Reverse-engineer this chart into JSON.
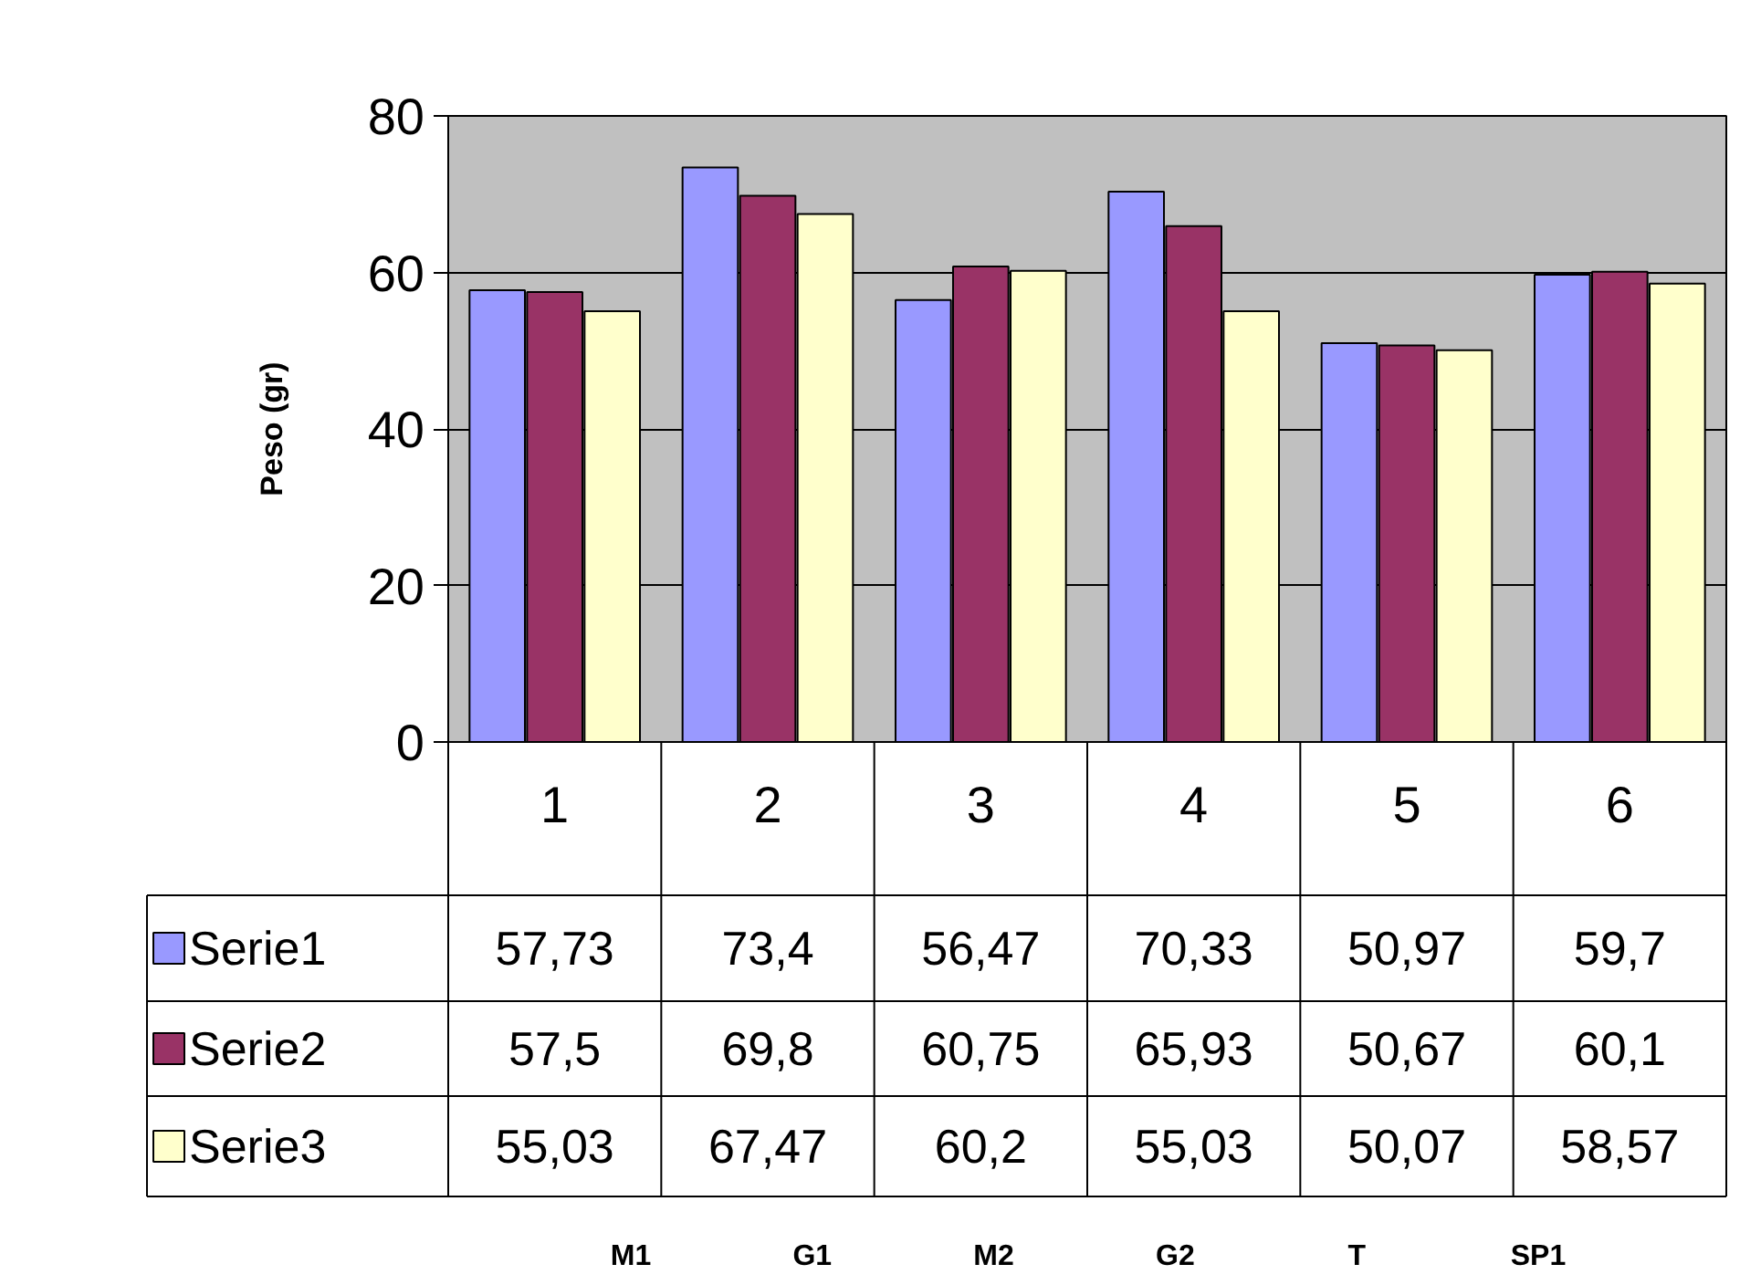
{
  "chart_data": {
    "type": "bar",
    "ylabel": "Peso (gr)",
    "categories": [
      "1",
      "2",
      "3",
      "4",
      "5",
      "6"
    ],
    "series": [
      {
        "name": "Serie1",
        "color": "#9999ff",
        "values": [
          57.73,
          73.4,
          56.47,
          70.33,
          50.97,
          59.7
        ],
        "value_labels": [
          "57,73",
          "73,4",
          "56,47",
          "70,33",
          "50,97",
          "59,7"
        ]
      },
      {
        "name": "Serie2",
        "color": "#993366",
        "values": [
          57.5,
          69.8,
          60.75,
          65.93,
          50.67,
          60.1
        ],
        "value_labels": [
          "57,5",
          "69,8",
          "60,75",
          "65,93",
          "50,67",
          "60,1"
        ]
      },
      {
        "name": "Serie3",
        "color": "#ffffcc",
        "values": [
          55.03,
          67.47,
          60.2,
          55.03,
          50.07,
          58.57
        ],
        "value_labels": [
          "55,03",
          "67,47",
          "60,2",
          "55,03",
          "50,07",
          "58,57"
        ]
      }
    ],
    "ylim": [
      0,
      80
    ],
    "yticks": [
      0,
      20,
      40,
      60,
      80
    ],
    "grid": "y",
    "legend": "bottom",
    "annotations": [
      "M1",
      "G1",
      "M2",
      "G2",
      "T",
      "SP1"
    ]
  }
}
